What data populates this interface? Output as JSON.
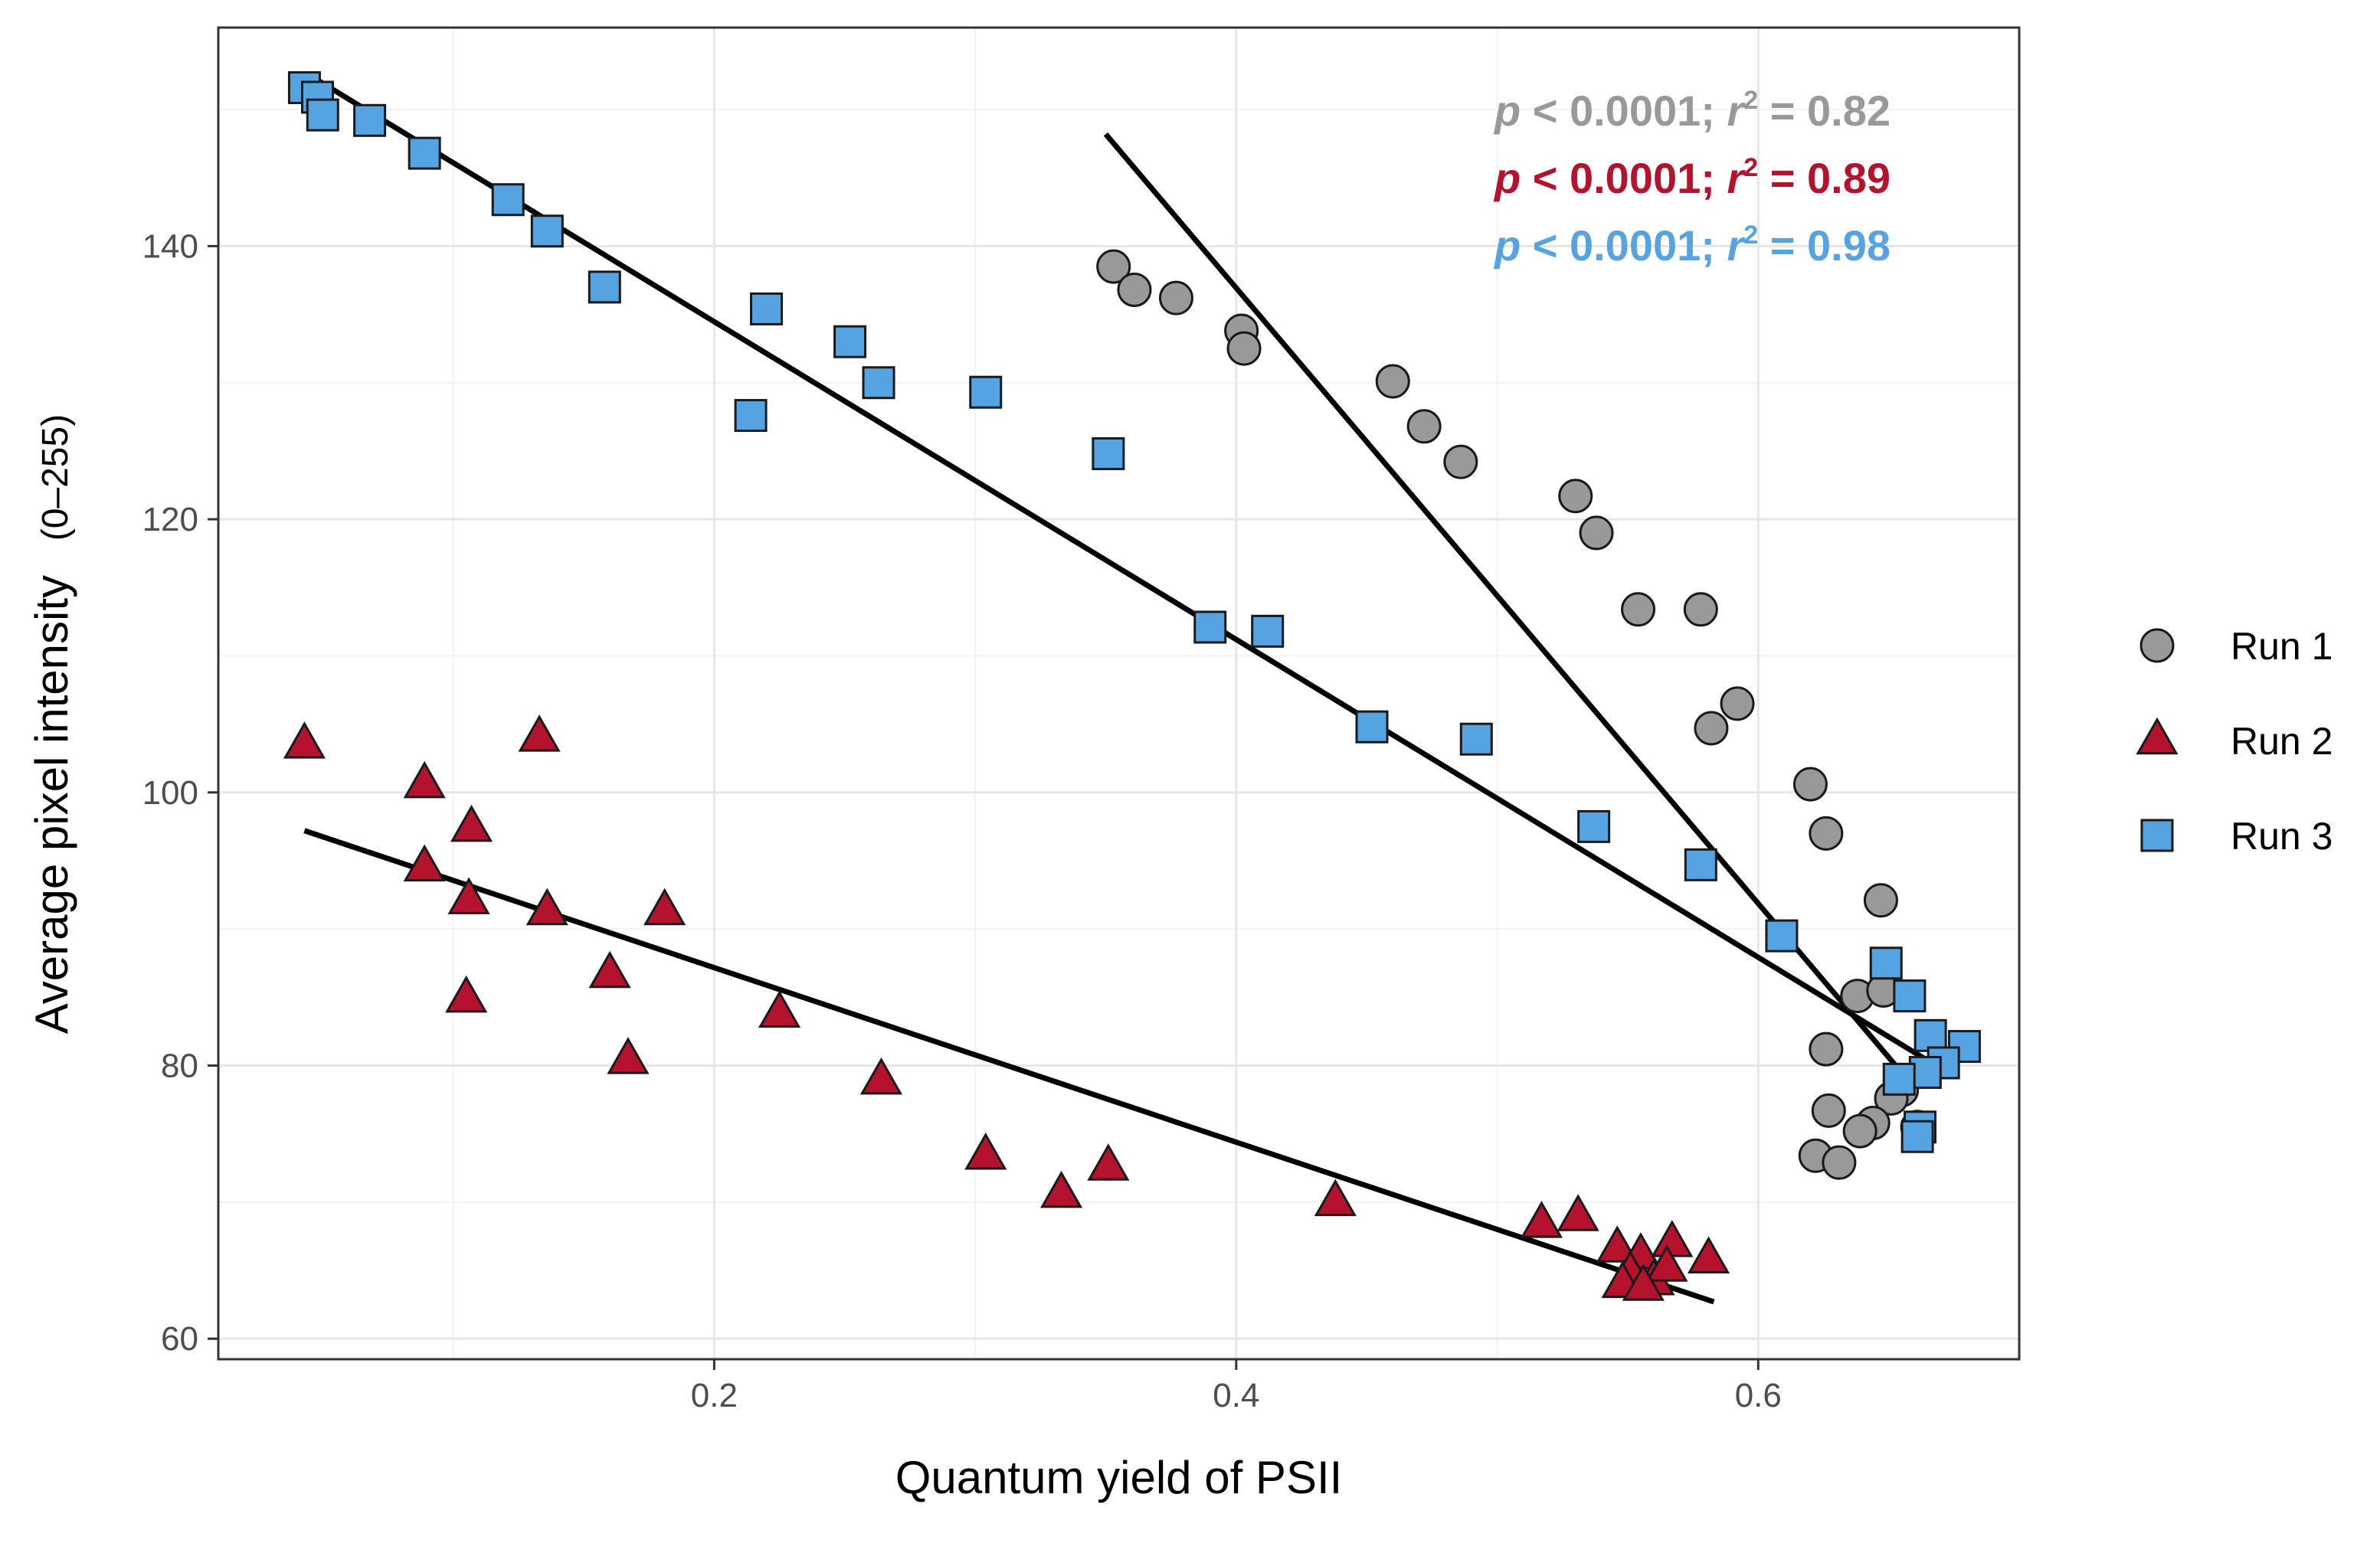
{
  "chart_data": {
    "type": "scatter",
    "xlabel": "Quantum yield of PSII",
    "ylabel": "Average pixel intensity",
    "ylabel_suffix": "(0–255)",
    "xlim": [
      0.01,
      0.7
    ],
    "ylim": [
      58.5,
      156
    ],
    "x_ticks": [
      0.2,
      0.4,
      0.6
    ],
    "x_tick_labels": [
      "0.2",
      "0.4",
      "0.6"
    ],
    "y_ticks": [
      60,
      80,
      100,
      120,
      140
    ],
    "y_tick_labels": [
      "60",
      "80",
      "100",
      "120",
      "140"
    ],
    "grid": true,
    "legend_position": "right",
    "series": [
      {
        "name": "Run 1",
        "marker": "circle",
        "color": "#999999",
        "stat": {
          "p_label": "p",
          "p_text": " < 0.0001; ",
          "r_label": "r",
          "r_exp": "2",
          "r_text": " = 0.82"
        },
        "fit": {
          "x1": 0.35,
          "y1": 148.2,
          "x2": 0.658,
          "y2": 78.8
        },
        "points": [
          {
            "x": 0.353,
            "y": 138.5
          },
          {
            "x": 0.361,
            "y": 136.8
          },
          {
            "x": 0.377,
            "y": 136.2
          },
          {
            "x": 0.402,
            "y": 133.8
          },
          {
            "x": 0.403,
            "y": 132.5
          },
          {
            "x": 0.46,
            "y": 130.1
          },
          {
            "x": 0.472,
            "y": 126.8
          },
          {
            "x": 0.486,
            "y": 124.2
          },
          {
            "x": 0.53,
            "y": 121.7
          },
          {
            "x": 0.538,
            "y": 119.0
          },
          {
            "x": 0.554,
            "y": 113.4
          },
          {
            "x": 0.578,
            "y": 113.4
          },
          {
            "x": 0.592,
            "y": 106.5
          },
          {
            "x": 0.582,
            "y": 104.7
          },
          {
            "x": 0.62,
            "y": 100.6
          },
          {
            "x": 0.626,
            "y": 97.0
          },
          {
            "x": 0.647,
            "y": 92.1
          },
          {
            "x": 0.638,
            "y": 85.1
          },
          {
            "x": 0.648,
            "y": 85.5
          },
          {
            "x": 0.626,
            "y": 81.2
          },
          {
            "x": 0.655,
            "y": 78.2
          },
          {
            "x": 0.651,
            "y": 77.6
          },
          {
            "x": 0.627,
            "y": 76.7
          },
          {
            "x": 0.644,
            "y": 75.8
          },
          {
            "x": 0.639,
            "y": 75.2
          },
          {
            "x": 0.622,
            "y": 73.4
          },
          {
            "x": 0.631,
            "y": 72.9
          },
          {
            "x": 0.661,
            "y": 75.5
          }
        ]
      },
      {
        "name": "Run 2",
        "marker": "triangle",
        "color": "#b5122e",
        "stat": {
          "p_label": "p",
          "p_text": " < 0.0001; ",
          "r_label": "r",
          "r_exp": "2",
          "r_text": " = 0.89"
        },
        "fit": {
          "x1": 0.043,
          "y1": 97.2,
          "x2": 0.583,
          "y2": 62.7
        },
        "points": [
          {
            "x": 0.043,
            "y": 103.5
          },
          {
            "x": 0.089,
            "y": 100.6
          },
          {
            "x": 0.133,
            "y": 104.0
          },
          {
            "x": 0.107,
            "y": 97.4
          },
          {
            "x": 0.089,
            "y": 94.5
          },
          {
            "x": 0.106,
            "y": 92.1
          },
          {
            "x": 0.136,
            "y": 91.3
          },
          {
            "x": 0.181,
            "y": 91.3
          },
          {
            "x": 0.16,
            "y": 86.7
          },
          {
            "x": 0.105,
            "y": 84.9
          },
          {
            "x": 0.167,
            "y": 80.4
          },
          {
            "x": 0.225,
            "y": 83.8
          },
          {
            "x": 0.264,
            "y": 78.9
          },
          {
            "x": 0.304,
            "y": 73.4
          },
          {
            "x": 0.333,
            "y": 70.6
          },
          {
            "x": 0.351,
            "y": 72.6
          },
          {
            "x": 0.438,
            "y": 70.0
          },
          {
            "x": 0.517,
            "y": 68.4
          },
          {
            "x": 0.531,
            "y": 68.9
          },
          {
            "x": 0.546,
            "y": 66.6
          },
          {
            "x": 0.555,
            "y": 66.1
          },
          {
            "x": 0.567,
            "y": 67.0
          },
          {
            "x": 0.581,
            "y": 65.8
          },
          {
            "x": 0.551,
            "y": 64.8
          },
          {
            "x": 0.548,
            "y": 64.0
          },
          {
            "x": 0.56,
            "y": 64.2
          },
          {
            "x": 0.565,
            "y": 65.2
          },
          {
            "x": 0.556,
            "y": 63.8
          }
        ]
      },
      {
        "name": "Run 3",
        "marker": "square",
        "color": "#56a3e2",
        "stat": {
          "p_label": "p",
          "p_text": " < 0.0001; ",
          "r_label": "r",
          "r_exp": "2",
          "r_text": " = 0.98"
        },
        "fit": {
          "x1": 0.045,
          "y1": 152.5,
          "x2": 0.675,
          "y2": 79.2
        },
        "points": [
          {
            "x": 0.043,
            "y": 151.6
          },
          {
            "x": 0.048,
            "y": 150.9
          },
          {
            "x": 0.05,
            "y": 149.6
          },
          {
            "x": 0.068,
            "y": 149.2
          },
          {
            "x": 0.089,
            "y": 146.8
          },
          {
            "x": 0.121,
            "y": 143.4
          },
          {
            "x": 0.136,
            "y": 141.1
          },
          {
            "x": 0.158,
            "y": 137.0
          },
          {
            "x": 0.22,
            "y": 135.4
          },
          {
            "x": 0.252,
            "y": 133.0
          },
          {
            "x": 0.263,
            "y": 130.0
          },
          {
            "x": 0.214,
            "y": 127.6
          },
          {
            "x": 0.304,
            "y": 129.3
          },
          {
            "x": 0.351,
            "y": 124.8
          },
          {
            "x": 0.39,
            "y": 112.1
          },
          {
            "x": 0.412,
            "y": 111.8
          },
          {
            "x": 0.452,
            "y": 104.8
          },
          {
            "x": 0.492,
            "y": 103.9
          },
          {
            "x": 0.537,
            "y": 97.5
          },
          {
            "x": 0.578,
            "y": 94.7
          },
          {
            "x": 0.609,
            "y": 89.5
          },
          {
            "x": 0.649,
            "y": 87.5
          },
          {
            "x": 0.658,
            "y": 85.1
          },
          {
            "x": 0.666,
            "y": 82.2
          },
          {
            "x": 0.679,
            "y": 81.4
          },
          {
            "x": 0.671,
            "y": 80.2
          },
          {
            "x": 0.664,
            "y": 79.5
          },
          {
            "x": 0.654,
            "y": 79.0
          },
          {
            "x": 0.662,
            "y": 75.5
          },
          {
            "x": 0.661,
            "y": 74.8
          }
        ]
      }
    ]
  }
}
